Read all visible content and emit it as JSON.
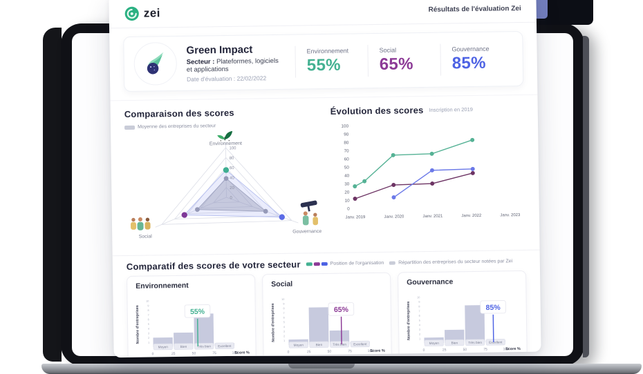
{
  "theme": {
    "green": "#44b192",
    "purple": "#8c3a96",
    "blue": "#4e63e4",
    "gray": "#c9ccd8"
  },
  "header": {
    "brand": "zei",
    "title": "Résultats de l'évaluation Zei"
  },
  "company": {
    "name": "Green Impact",
    "sector_label": "Secteur :",
    "sector": "Plateformes, logiciels et applications",
    "date_label": "Date d'évaluation :",
    "date": "22/02/2022",
    "scores": [
      {
        "label": "Environnement",
        "value": "55%"
      },
      {
        "label": "Social",
        "value": "65%"
      },
      {
        "label": "Gouvernance",
        "value": "85%"
      }
    ]
  },
  "comparison": {
    "title": "Comparaison des scores",
    "legend": "Moyenne des entreprises du secteur"
  },
  "evolution": {
    "title": "Évolution des scores",
    "subtitle": "Inscription en 2019"
  },
  "sector_comparison": {
    "title": "Comparatif des scores de votre secteur",
    "legend_org": "Position de l'organisation",
    "legend_sector": "Répartition des entreprises du secteur notées par Zei"
  },
  "chart_data": [
    {
      "id": "radar_comparison",
      "type": "radar",
      "title": "Comparaison des scores",
      "axes": [
        "Environnement",
        "Social",
        "Gouvernance"
      ],
      "scale": [
        0,
        20,
        40,
        60,
        80,
        100
      ],
      "series": [
        {
          "name": "Moyenne des entreprises du secteur",
          "values": [
            38,
            45,
            60
          ],
          "fill": "rgba(150,153,168,0.40)",
          "stroke": "#aaadbb",
          "point_colors": [
            "#9b9eae",
            "#9b9eae",
            "#9b9eae"
          ],
          "point_r": 3.4
        },
        {
          "name": "Position de l'organisation",
          "values": [
            55,
            65,
            85
          ],
          "fill": "rgba(124,136,235,0.16)",
          "stroke": "#b9c2f0",
          "point_colors": [
            "#3fae92",
            "#7e3897",
            "#5b6be6"
          ],
          "point_r": 4.2
        }
      ]
    },
    {
      "id": "evolution_scores",
      "type": "line",
      "title": "Évolution des scores",
      "subtitle": "Inscription en 2019",
      "x_labels": [
        "Janv. 2019",
        "Janv. 2020",
        "Janv. 2021",
        "Janv. 2022",
        "Janv. 2023"
      ],
      "x_range": [
        2019,
        2023
      ],
      "y_ticks": [
        0,
        10,
        20,
        30,
        40,
        50,
        60,
        70,
        80,
        90,
        100
      ],
      "series": [
        {
          "name": "serie_verte",
          "color": "#55b295",
          "points": [
            [
              2019.0,
              27
            ],
            [
              2019.25,
              33
            ],
            [
              2020.0,
              64
            ],
            [
              2021.0,
              65
            ],
            [
              2022.05,
              81
            ]
          ]
        },
        {
          "name": "serie_violette",
          "color": "#6d3464",
          "points": [
            [
              2019.0,
              12
            ],
            [
              2020.0,
              28
            ],
            [
              2021.0,
              29
            ],
            [
              2022.05,
              41
            ]
          ]
        },
        {
          "name": "serie_bleue",
          "color": "#6b79e8",
          "points": [
            [
              2020.0,
              13
            ],
            [
              2021.0,
              45
            ],
            [
              2022.05,
              46
            ]
          ]
        }
      ]
    },
    {
      "id": "hist_environnement",
      "type": "bar",
      "title": "Environnement",
      "ylabel": "Nombre d'entreprises",
      "xlabel": "Score %",
      "x_ticks": [
        0,
        25,
        50,
        75,
        100
      ],
      "y_ticks": [
        1,
        2,
        3,
        4,
        5,
        6,
        7,
        8,
        9,
        10
      ],
      "categories": [
        "Moyen",
        "Bien",
        "Très bien",
        "Excellent"
      ],
      "values": [
        2,
        3,
        7,
        0.6
      ],
      "marker": {
        "value": 55,
        "label": "55%",
        "color": "#44b192"
      }
    },
    {
      "id": "hist_social",
      "type": "bar",
      "title": "Social",
      "ylabel": "Nombre d'entreprises",
      "xlabel": "Score %",
      "x_ticks": [
        0,
        25,
        50,
        75,
        100
      ],
      "y_ticks": [
        1,
        2,
        3,
        4,
        5,
        6,
        7,
        8,
        9,
        10
      ],
      "categories": [
        "Moyen",
        "Bien",
        "Très bien",
        "Excellent"
      ],
      "values": [
        1.2,
        8,
        3,
        0.5
      ],
      "marker": {
        "value": 65,
        "label": "65%",
        "color": "#8c3a96"
      }
    },
    {
      "id": "hist_gouvernance",
      "type": "bar",
      "title": "Gouvernance",
      "ylabel": "Nombre d'entreprises",
      "xlabel": "Score %",
      "x_ticks": [
        0,
        25,
        50,
        75,
        100
      ],
      "y_ticks": [
        1,
        2,
        3,
        4,
        5,
        6,
        7,
        8,
        9,
        10
      ],
      "categories": [
        "Moyen",
        "Bien",
        "Très bien",
        "Excellent"
      ],
      "values": [
        1.2,
        2.8,
        8,
        0.4
      ],
      "marker": {
        "value": 85,
        "label": "85%",
        "color": "#4e63e4"
      }
    }
  ]
}
